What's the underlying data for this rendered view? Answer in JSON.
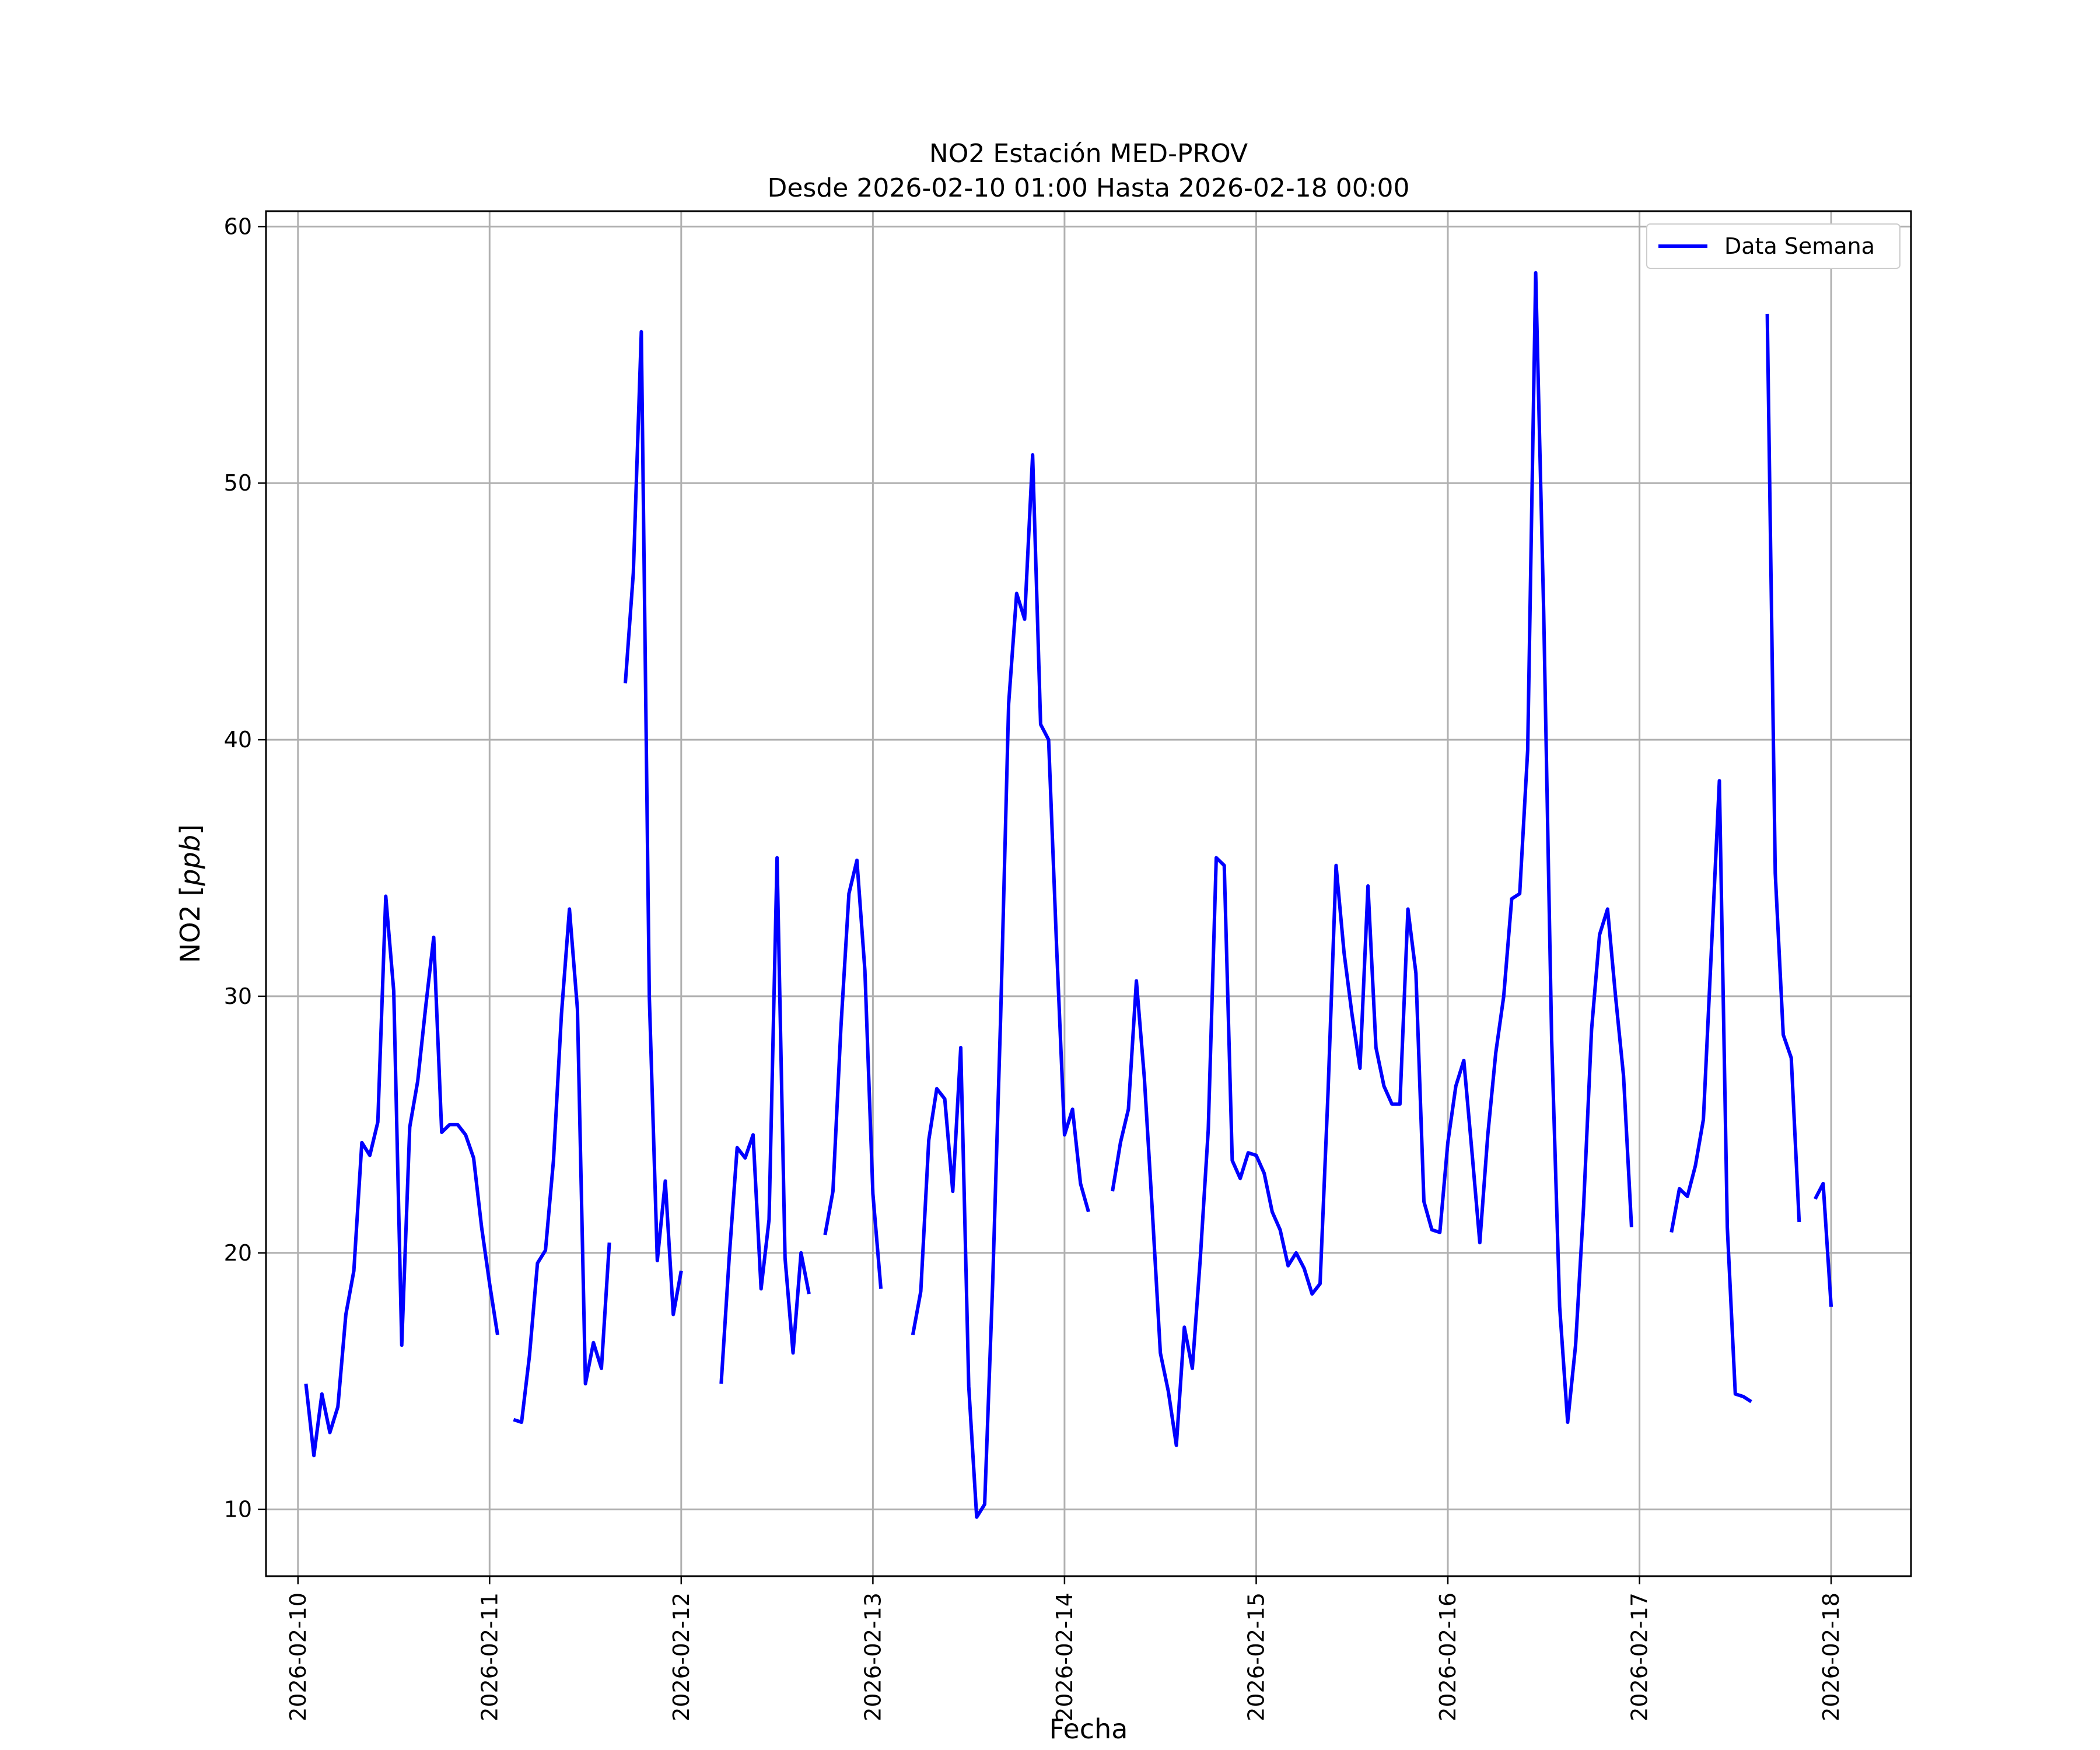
{
  "chart_data": {
    "type": "line",
    "title": "NO2 Estación MED-PROV",
    "subtitle": "Desde 2026-02-10 01:00 Hasta 2026-02-18 00:00",
    "xlabel": "Fecha",
    "ylabel_prefix": "NO2 [",
    "ylabel_unit": "ppb",
    "ylabel_suffix": "]",
    "ylim": [
      7.4,
      60.6
    ],
    "y_ticks": [
      10,
      20,
      30,
      40,
      50,
      60
    ],
    "x_ticks": [
      "2026-02-10",
      "2026-02-11",
      "2026-02-12",
      "2026-02-13",
      "2026-02-14",
      "2026-02-15",
      "2026-02-16",
      "2026-02-17",
      "2026-02-18"
    ],
    "x_range": [
      "2026-02-09T20:00",
      "2026-02-18T10:00"
    ],
    "grid": true,
    "legend_position": "top-right",
    "color": "#0000ff",
    "series": [
      {
        "name": "Data Semana",
        "segments": [
          [
            [
              "2026-02-10T01:00",
              14.9
            ],
            [
              "2026-02-10T02:00",
              12.1
            ],
            [
              "2026-02-10T03:00",
              14.5
            ],
            [
              "2026-02-10T04:00",
              13.0
            ],
            [
              "2026-02-10T05:00",
              14.0
            ],
            [
              "2026-02-10T06:00",
              17.6
            ],
            [
              "2026-02-10T07:00",
              19.3
            ],
            [
              "2026-02-10T08:00",
              24.3
            ],
            [
              "2026-02-10T09:00",
              23.8
            ],
            [
              "2026-02-10T10:00",
              25.1
            ],
            [
              "2026-02-10T11:00",
              33.9
            ],
            [
              "2026-02-10T12:00",
              30.2
            ],
            [
              "2026-02-10T13:00",
              16.4
            ],
            [
              "2026-02-10T14:00",
              24.9
            ],
            [
              "2026-02-10T15:00",
              26.7
            ],
            [
              "2026-02-10T16:00",
              29.6
            ],
            [
              "2026-02-10T17:00",
              32.3
            ],
            [
              "2026-02-10T18:00",
              24.7
            ],
            [
              "2026-02-10T19:00",
              25.0
            ],
            [
              "2026-02-10T20:00",
              25.0
            ],
            [
              "2026-02-10T21:00",
              24.6
            ],
            [
              "2026-02-10T22:00",
              23.7
            ],
            [
              "2026-02-10T23:00",
              21.0
            ],
            [
              "2026-02-11T00:00",
              18.8
            ],
            [
              "2026-02-11T01:00",
              16.8
            ]
          ],
          [
            [
              "2026-02-11T03:00",
              13.5
            ],
            [
              "2026-02-11T04:00",
              13.4
            ],
            [
              "2026-02-11T05:00",
              16.0
            ],
            [
              "2026-02-11T06:00",
              19.6
            ],
            [
              "2026-02-11T07:00",
              20.1
            ],
            [
              "2026-02-11T08:00",
              23.6
            ],
            [
              "2026-02-11T09:00",
              29.3
            ],
            [
              "2026-02-11T10:00",
              33.4
            ],
            [
              "2026-02-11T11:00",
              29.5
            ],
            [
              "2026-02-11T12:00",
              14.9
            ],
            [
              "2026-02-11T13:00",
              16.5
            ],
            [
              "2026-02-11T14:00",
              15.5
            ],
            [
              "2026-02-11T15:00",
              20.4
            ]
          ],
          [
            [
              "2026-02-11T17:00",
              42.2
            ],
            [
              "2026-02-11T18:00",
              46.5
            ],
            [
              "2026-02-11T19:00",
              55.9
            ],
            [
              "2026-02-11T20:00",
              30.0
            ],
            [
              "2026-02-11T21:00",
              19.7
            ],
            [
              "2026-02-11T22:00",
              22.8
            ],
            [
              "2026-02-11T23:00",
              17.6
            ],
            [
              "2026-02-12T00:00",
              19.3
            ]
          ],
          [
            [
              "2026-02-12T05:00",
              14.9
            ],
            [
              "2026-02-12T06:00",
              19.8
            ],
            [
              "2026-02-12T07:00",
              24.1
            ],
            [
              "2026-02-12T08:00",
              23.7
            ],
            [
              "2026-02-12T09:00",
              24.6
            ],
            [
              "2026-02-12T10:00",
              18.6
            ],
            [
              "2026-02-12T11:00",
              21.3
            ],
            [
              "2026-02-12T12:00",
              35.4
            ],
            [
              "2026-02-12T13:00",
              19.8
            ],
            [
              "2026-02-12T14:00",
              16.1
            ],
            [
              "2026-02-12T15:00",
              20.0
            ],
            [
              "2026-02-12T16:00",
              18.4
            ]
          ],
          [
            [
              "2026-02-12T18:00",
              20.7
            ],
            [
              "2026-02-12T19:00",
              22.4
            ],
            [
              "2026-02-12T20:00",
              28.8
            ],
            [
              "2026-02-12T21:00",
              34.0
            ],
            [
              "2026-02-12T22:00",
              35.3
            ],
            [
              "2026-02-12T23:00",
              31.0
            ],
            [
              "2026-02-13T00:00",
              22.3
            ],
            [
              "2026-02-13T01:00",
              18.6
            ]
          ],
          [
            [
              "2026-02-13T05:00",
              16.8
            ],
            [
              "2026-02-13T06:00",
              18.5
            ],
            [
              "2026-02-13T07:00",
              24.4
            ],
            [
              "2026-02-13T08:00",
              26.4
            ],
            [
              "2026-02-13T09:00",
              26.0
            ],
            [
              "2026-02-13T10:00",
              22.4
            ],
            [
              "2026-02-13T11:00",
              28.0
            ],
            [
              "2026-02-13T12:00",
              14.8
            ],
            [
              "2026-02-13T13:00",
              9.7
            ],
            [
              "2026-02-13T14:00",
              10.2
            ],
            [
              "2026-02-13T15:00",
              18.8
            ],
            [
              "2026-02-13T16:00",
              29.2
            ],
            [
              "2026-02-13T17:00",
              41.4
            ],
            [
              "2026-02-13T18:00",
              45.7
            ],
            [
              "2026-02-13T19:00",
              44.7
            ],
            [
              "2026-02-13T20:00",
              51.1
            ],
            [
              "2026-02-13T21:00",
              40.6
            ],
            [
              "2026-02-13T22:00",
              40.0
            ],
            [
              "2026-02-13T23:00",
              32.0
            ],
            [
              "2026-02-14T00:00",
              24.6
            ],
            [
              "2026-02-14T01:00",
              25.6
            ],
            [
              "2026-02-14T02:00",
              22.7
            ],
            [
              "2026-02-14T03:00",
              21.6
            ]
          ],
          [
            [
              "2026-02-14T06:00",
              22.4
            ],
            [
              "2026-02-14T07:00",
              24.3
            ],
            [
              "2026-02-14T08:00",
              25.6
            ],
            [
              "2026-02-14T09:00",
              30.6
            ],
            [
              "2026-02-14T10:00",
              26.8
            ],
            [
              "2026-02-14T11:00",
              21.6
            ],
            [
              "2026-02-14T12:00",
              16.1
            ],
            [
              "2026-02-14T13:00",
              14.6
            ],
            [
              "2026-02-14T14:00",
              12.5
            ],
            [
              "2026-02-14T15:00",
              17.1
            ],
            [
              "2026-02-14T16:00",
              15.5
            ],
            [
              "2026-02-14T17:00",
              19.8
            ],
            [
              "2026-02-14T18:00",
              24.8
            ],
            [
              "2026-02-14T19:00",
              35.4
            ],
            [
              "2026-02-14T20:00",
              35.1
            ],
            [
              "2026-02-14T21:00",
              23.6
            ],
            [
              "2026-02-14T22:00",
              22.9
            ],
            [
              "2026-02-14T23:00",
              23.9
            ],
            [
              "2026-02-15T00:00",
              23.8
            ],
            [
              "2026-02-15T01:00",
              23.1
            ],
            [
              "2026-02-15T02:00",
              21.6
            ],
            [
              "2026-02-15T03:00",
              20.9
            ],
            [
              "2026-02-15T04:00",
              19.5
            ],
            [
              "2026-02-15T05:00",
              20.0
            ],
            [
              "2026-02-15T06:00",
              19.4
            ],
            [
              "2026-02-15T07:00",
              18.4
            ],
            [
              "2026-02-15T08:00",
              18.8
            ],
            [
              "2026-02-15T09:00",
              26.3
            ],
            [
              "2026-02-15T10:00",
              35.1
            ],
            [
              "2026-02-15T11:00",
              31.7
            ],
            [
              "2026-02-15T12:00",
              29.3
            ],
            [
              "2026-02-15T13:00",
              27.2
            ],
            [
              "2026-02-15T14:00",
              34.3
            ],
            [
              "2026-02-15T15:00",
              28.0
            ],
            [
              "2026-02-15T16:00",
              26.5
            ],
            [
              "2026-02-15T17:00",
              25.8
            ],
            [
              "2026-02-15T18:00",
              25.8
            ],
            [
              "2026-02-15T19:00",
              33.4
            ],
            [
              "2026-02-15T20:00",
              30.9
            ],
            [
              "2026-02-15T21:00",
              22.0
            ],
            [
              "2026-02-15T22:00",
              20.9
            ],
            [
              "2026-02-15T23:00",
              20.8
            ],
            [
              "2026-02-16T00:00",
              24.3
            ],
            [
              "2026-02-16T01:00",
              26.5
            ],
            [
              "2026-02-16T02:00",
              27.5
            ],
            [
              "2026-02-16T03:00",
              24.0
            ],
            [
              "2026-02-16T04:00",
              20.4
            ],
            [
              "2026-02-16T05:00",
              24.6
            ],
            [
              "2026-02-16T06:00",
              27.8
            ],
            [
              "2026-02-16T07:00",
              30.0
            ],
            [
              "2026-02-16T08:00",
              33.8
            ],
            [
              "2026-02-16T09:00",
              34.0
            ],
            [
              "2026-02-16T10:00",
              39.6
            ],
            [
              "2026-02-16T11:00",
              58.2
            ],
            [
              "2026-02-16T12:00",
              45.0
            ],
            [
              "2026-02-16T13:00",
              28.3
            ],
            [
              "2026-02-16T14:00",
              17.9
            ],
            [
              "2026-02-16T15:00",
              13.4
            ],
            [
              "2026-02-16T16:00",
              16.4
            ],
            [
              "2026-02-16T17:00",
              21.8
            ],
            [
              "2026-02-16T18:00",
              28.7
            ],
            [
              "2026-02-16T19:00",
              32.4
            ],
            [
              "2026-02-16T20:00",
              33.4
            ],
            [
              "2026-02-16T21:00",
              30.0
            ],
            [
              "2026-02-16T22:00",
              26.9
            ],
            [
              "2026-02-16T23:00",
              21.0
            ]
          ],
          [
            [
              "2026-02-17T04:00",
              20.8
            ],
            [
              "2026-02-17T05:00",
              22.5
            ],
            [
              "2026-02-17T06:00",
              22.2
            ],
            [
              "2026-02-17T07:00",
              23.4
            ],
            [
              "2026-02-17T08:00",
              25.2
            ],
            [
              "2026-02-17T09:00",
              31.8
            ],
            [
              "2026-02-17T10:00",
              38.4
            ],
            [
              "2026-02-17T11:00",
              21.0
            ],
            [
              "2026-02-17T12:00",
              14.5
            ],
            [
              "2026-02-17T13:00",
              14.4
            ],
            [
              "2026-02-17T14:00",
              14.2
            ]
          ],
          [
            [
              "2026-02-17T16:00",
              56.6
            ],
            [
              "2026-02-17T17:00",
              34.8
            ],
            [
              "2026-02-17T18:00",
              28.5
            ],
            [
              "2026-02-17T19:00",
              27.6
            ],
            [
              "2026-02-17T20:00",
              21.2
            ]
          ],
          [
            [
              "2026-02-17T22:00",
              22.1
            ],
            [
              "2026-02-17T23:00",
              22.7
            ],
            [
              "2026-02-18T00:00",
              17.9
            ]
          ]
        ]
      }
    ]
  }
}
